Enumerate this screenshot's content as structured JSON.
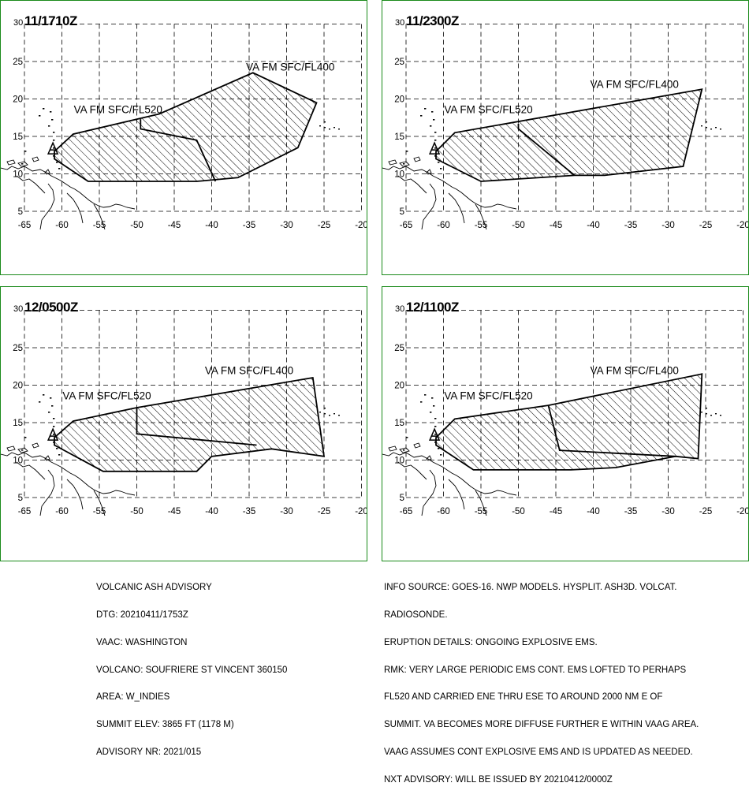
{
  "advisory": {
    "left_lines": [
      "VOLCANIC ASH ADVISORY",
      "DTG: 20210411/1753Z",
      "VAAC: WASHINGTON",
      "VOLCANO: SOUFRIERE ST VINCENT 360150",
      "AREA: W_INDIES",
      "SUMMIT ELEV: 3865 FT (1178 M)",
      "ADVISORY NR: 2021/015"
    ],
    "right_lines": [
      "INFO SOURCE: GOES-16. NWP MODELS. HYSPLIT. ASH3D. VOLCAT.",
      "RADIOSONDE.",
      "ERUPTION DETAILS: ONGOING EXPLOSIVE EMS.",
      "RMK: VERY LARGE PERIODIC EMS CONT. EMS LOFTED TO PERHAPS",
      "FL520 AND CARRIED ENE THRU ESE TO AROUND 2000 NM E OF",
      "SUMMIT. VA BECOMES MORE DIFFUSE FURTHER E WITHIN VAAG AREA.",
      "VAAG ASSUMES CONT EXPLOSIVE EMS AND IS UPDATED AS NEEDED.",
      "NXT ADVISORY: WILL BE ISSUED BY 20210412/0000Z"
    ]
  },
  "map_axes": {
    "lon_ticks": [
      "-65",
      "-60",
      "-55",
      "-50",
      "-45",
      "-40",
      "-35",
      "-30",
      "-25",
      "-20"
    ],
    "lat_ticks": [
      "30",
      "25",
      "20",
      "15",
      "10",
      "5"
    ],
    "lon_range": [
      -65,
      -20
    ],
    "lat_range": [
      5,
      30
    ]
  },
  "volcano": {
    "lon": -61.2,
    "lat": 13.3
  },
  "panels": [
    {
      "time": "11/1710Z",
      "label_high": "VA FM SFC/FL400",
      "label_low": "VA FM SFC/FL520",
      "label_high_pos": [
        -29.5,
        23.8
      ],
      "label_low_pos": [
        -52.5,
        18.1
      ],
      "outline": [
        [
          -61,
          13
        ],
        [
          -58.5,
          15.3
        ],
        [
          -47,
          18
        ],
        [
          -34.5,
          23.5
        ],
        [
          -26,
          19.5
        ],
        [
          -28.5,
          13.5
        ],
        [
          -36.5,
          9.5
        ],
        [
          -42,
          9
        ],
        [
          -56.5,
          9
        ],
        [
          -61,
          12
        ]
      ],
      "divider": [
        [
          -49.5,
          17.3
        ],
        [
          -49.5,
          16
        ],
        [
          -42,
          14.5
        ],
        [
          -39.5,
          9
        ]
      ]
    },
    {
      "time": "11/2300Z",
      "label_high": "VA FM SFC/FL400",
      "label_low": "VA FM SFC/FL520",
      "label_high_pos": [
        -34.5,
        21.5
      ],
      "label_low_pos": [
        -54,
        18.1
      ],
      "outline": [
        [
          -61,
          13
        ],
        [
          -58.5,
          15.5
        ],
        [
          -25.5,
          21.3
        ],
        [
          -28,
          11
        ],
        [
          -38.5,
          9.8
        ],
        [
          -42.5,
          9.8
        ],
        [
          -55,
          9
        ],
        [
          -61,
          12
        ]
      ],
      "divider": [
        [
          -50,
          16.7
        ],
        [
          -50,
          16
        ],
        [
          -42.5,
          9.8
        ]
      ]
    },
    {
      "time": "12/0500Z",
      "label_high": "VA FM SFC/FL400",
      "label_low": "VA FM SFC/FL520",
      "label_high_pos": [
        -35,
        21.5
      ],
      "label_low_pos": [
        -54,
        18.1
      ],
      "outline": [
        [
          -61,
          13
        ],
        [
          -58.5,
          15.2
        ],
        [
          -50,
          17
        ],
        [
          -26.5,
          21
        ],
        [
          -25,
          10.5
        ],
        [
          -32,
          11.5
        ],
        [
          -40,
          10.5
        ],
        [
          -42,
          8.5
        ],
        [
          -54.5,
          8.5
        ],
        [
          -61,
          12
        ]
      ],
      "divider": [
        [
          -50,
          17
        ],
        [
          -50,
          13.5
        ],
        [
          -34,
          12
        ]
      ]
    },
    {
      "time": "12/1100Z",
      "label_high": "VA FM SFC/FL400",
      "label_low": "VA FM SFC/FL520",
      "label_high_pos": [
        -34.5,
        21.5
      ],
      "label_low_pos": [
        -54,
        18.1
      ],
      "outline": [
        [
          -61,
          13
        ],
        [
          -58.5,
          15.5
        ],
        [
          -46,
          17.3
        ],
        [
          -25.5,
          21.5
        ],
        [
          -26,
          10.2
        ],
        [
          -29,
          10.5
        ],
        [
          -37,
          9
        ],
        [
          -43,
          8.7
        ],
        [
          -56,
          8.7
        ],
        [
          -61,
          12
        ]
      ],
      "divider": [
        [
          -46,
          17.3
        ],
        [
          -44.5,
          11.3
        ],
        [
          -29,
          10.5
        ]
      ]
    }
  ]
}
